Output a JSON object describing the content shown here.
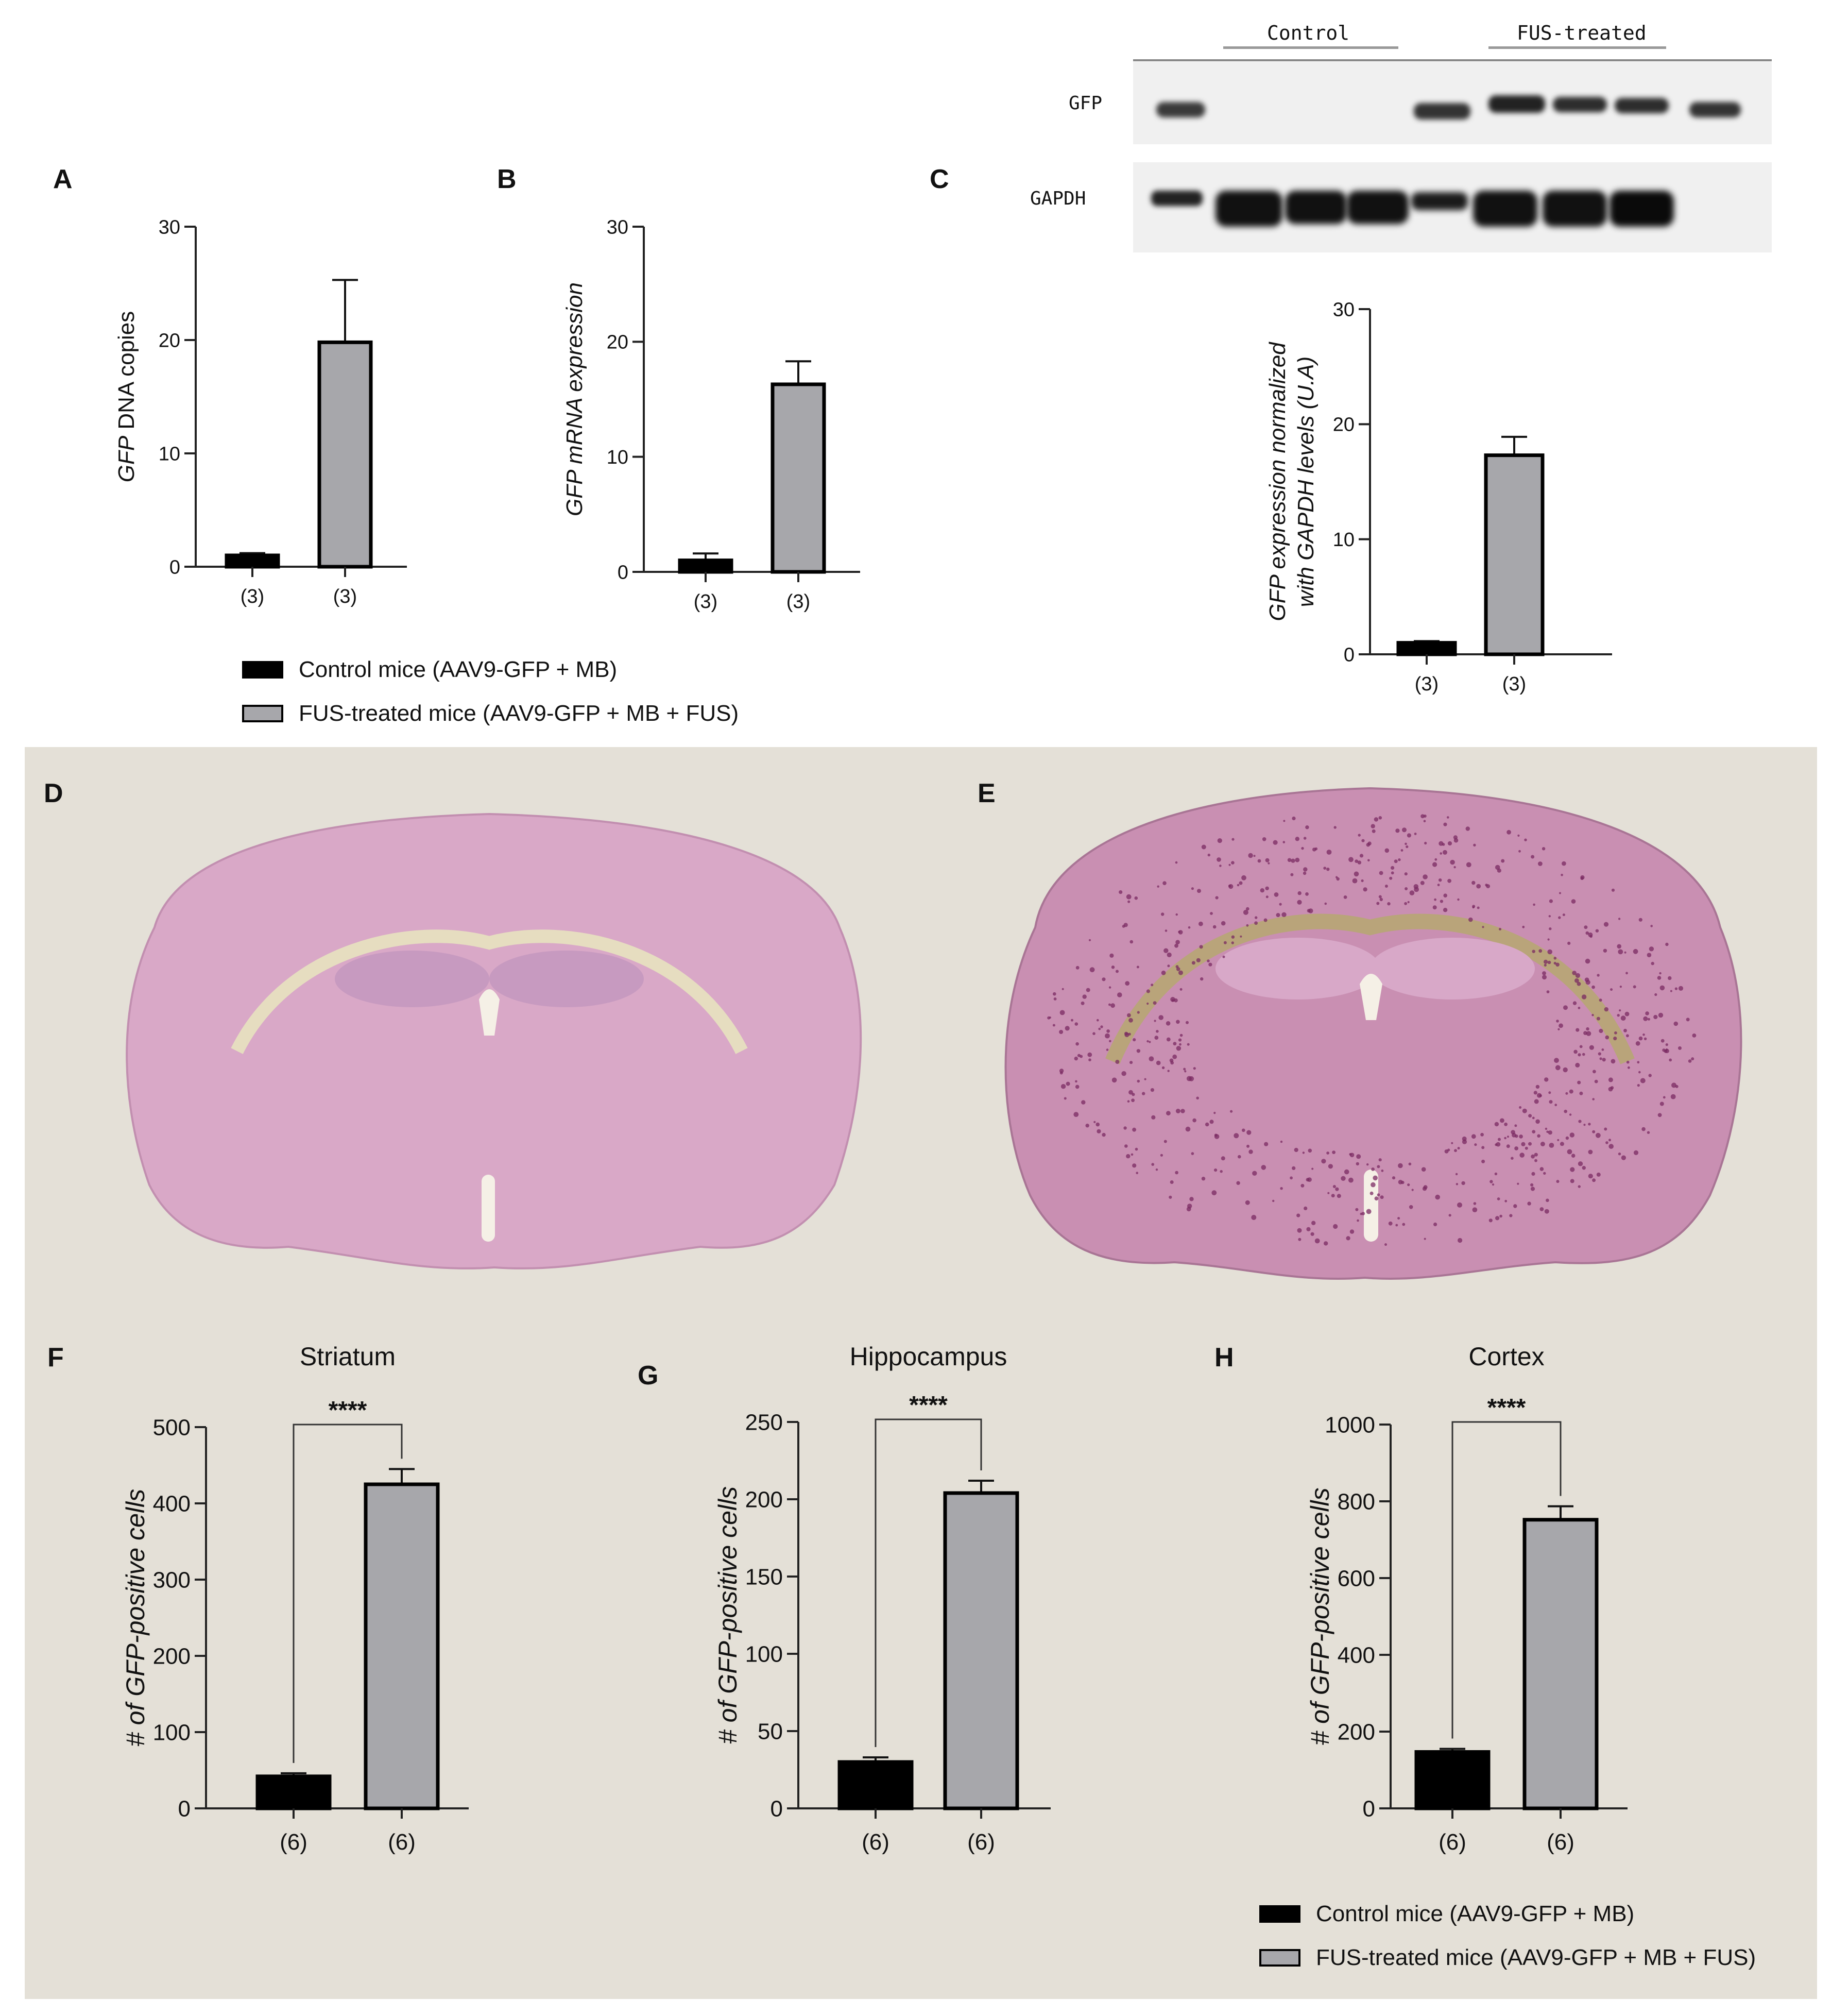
{
  "panel_letters": {
    "a": "A",
    "b": "B",
    "c": "C",
    "d": "D",
    "e": "E",
    "f": "F",
    "g": "G",
    "h": "H"
  },
  "blot": {
    "group1": "Control",
    "group2": "FUS-treated",
    "row1": "GFP",
    "row2": "GAPDH"
  },
  "legend": {
    "control": "Control mice (AAV9-GFP + MB)",
    "fus": "FUS-treated mice (AAV9-GFP + MB + FUS)"
  },
  "colors": {
    "control": "#000000",
    "fus": "#a7a7ab",
    "background_lower": "#e4e0d7",
    "tissue_control": "#d9a8c7",
    "tissue_fus": "#c98fb2"
  },
  "chart_data": [
    {
      "id": "A",
      "type": "bar",
      "categories": [
        "(3)",
        "(3)"
      ],
      "values": [
        1.0,
        19.8
      ],
      "errors": [
        0.2,
        5.5
      ],
      "ylabel_italic": "GFP",
      "ylabel_rest": " DNA copies",
      "ylim": [
        0,
        30
      ],
      "yticks": [
        0,
        10,
        20,
        30
      ],
      "title": "",
      "significance": ""
    },
    {
      "id": "B",
      "type": "bar",
      "categories": [
        "(3)",
        "(3)"
      ],
      "values": [
        1.0,
        16.3
      ],
      "errors": [
        0.6,
        2.0
      ],
      "ylabel_italic": "GFP mRNA expression",
      "ylabel_rest": "",
      "ylim": [
        0,
        30
      ],
      "yticks": [
        0,
        10,
        20,
        30
      ],
      "title": "",
      "significance": ""
    },
    {
      "id": "C",
      "type": "bar",
      "categories": [
        "(3)",
        "(3)"
      ],
      "values": [
        1.0,
        17.3
      ],
      "errors": [
        0.15,
        1.6
      ],
      "ylabel_italic": "GFP expression normalized",
      "ylabel_line2": "with GAPDH levels (U.A)",
      "ylim": [
        0,
        30
      ],
      "yticks": [
        0,
        10,
        20,
        30
      ],
      "title": "",
      "significance": ""
    },
    {
      "id": "F",
      "type": "bar",
      "categories": [
        "(6)",
        "(6)"
      ],
      "values": [
        42,
        425
      ],
      "errors": [
        4,
        20
      ],
      "ylabel_italic": "# of GFP-positive cells",
      "ylim": [
        0,
        500
      ],
      "yticks": [
        0,
        100,
        200,
        300,
        400,
        500
      ],
      "title": "Striatum",
      "significance": "****"
    },
    {
      "id": "G",
      "type": "bar",
      "categories": [
        "(6)",
        "(6)"
      ],
      "values": [
        30,
        204
      ],
      "errors": [
        3,
        8
      ],
      "ylabel_italic": "# of GFP-positive cells",
      "ylim": [
        0,
        250
      ],
      "yticks": [
        0,
        50,
        100,
        150,
        200,
        250
      ],
      "title": "Hippocampus",
      "significance": "****"
    },
    {
      "id": "H",
      "type": "bar",
      "categories": [
        "(6)",
        "(6)"
      ],
      "values": [
        147,
        752
      ],
      "errors": [
        8,
        35
      ],
      "ylabel_italic": "# of GFP-positive cells",
      "ylim": [
        0,
        1000
      ],
      "yticks": [
        0,
        200,
        400,
        600,
        800,
        1000
      ],
      "title": "Cortex",
      "significance": "****"
    }
  ]
}
